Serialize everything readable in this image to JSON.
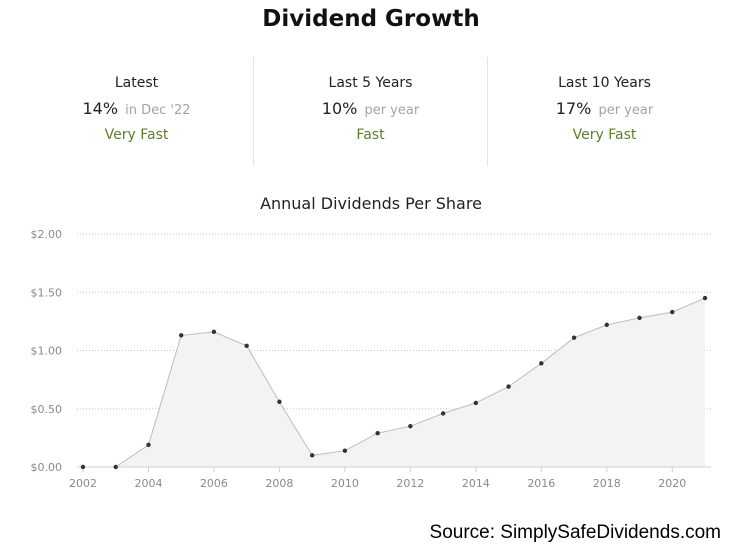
{
  "header": {
    "title": "Dividend Growth"
  },
  "stats": [
    {
      "label": "Latest",
      "value": "14%",
      "suffix": "in Dec '22",
      "rating": "Very Fast"
    },
    {
      "label": "Last 5 Years",
      "value": "10%",
      "suffix": "per year",
      "rating": "Fast"
    },
    {
      "label": "Last 10 Years",
      "value": "17%",
      "suffix": "per year",
      "rating": "Very Fast"
    }
  ],
  "colors": {
    "rating_green": "#5b7f2c",
    "area_fill": "#f3f3f3",
    "line": "#bdbdbd",
    "point": "#333333",
    "grid": "#c8c8c8"
  },
  "chart_data": {
    "type": "area",
    "title": "Annual Dividends Per Share",
    "xlabel": "",
    "ylabel": "",
    "x": [
      2002,
      2003,
      2004,
      2005,
      2006,
      2007,
      2008,
      2009,
      2010,
      2011,
      2012,
      2013,
      2014,
      2015,
      2016,
      2017,
      2018,
      2019,
      2020,
      2021
    ],
    "series": [
      {
        "values": [
          0.0,
          0.0,
          0.19,
          1.13,
          1.16,
          1.04,
          0.56,
          0.1,
          0.14,
          0.29,
          0.35,
          0.46,
          0.55,
          0.69,
          0.89,
          1.11,
          1.22,
          1.28,
          1.33,
          1.45
        ]
      }
    ],
    "ylim": [
      0,
      2
    ],
    "xlim": [
      2002,
      2021
    ],
    "y_ticks": [
      0,
      0.5,
      1,
      1.5,
      2
    ],
    "y_tick_labels": [
      "$0.00",
      "$0.50",
      "$1.00",
      "$1.50",
      "$2.00"
    ],
    "x_ticks": [
      2002,
      2004,
      2006,
      2008,
      2010,
      2012,
      2014,
      2016,
      2018,
      2020
    ],
    "x_tick_labels": [
      "2002",
      "2004",
      "2006",
      "2008",
      "2010",
      "2012",
      "2014",
      "2016",
      "2018",
      "2020"
    ],
    "grid": true,
    "legend": "none"
  },
  "footer": {
    "source": "Source: SimplySafeDividends.com"
  }
}
